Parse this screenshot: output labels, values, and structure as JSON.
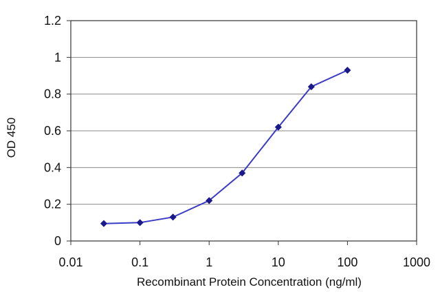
{
  "chart_data": {
    "type": "line",
    "title": "",
    "xlabel": "Recombinant Protein Concentration (ng/ml)",
    "ylabel": "OD 450",
    "x_scale": "log",
    "xlim": [
      0.01,
      1000
    ],
    "ylim": [
      0,
      1.2
    ],
    "x_ticks": [
      "0.01",
      "0.1",
      "1",
      "10",
      "100",
      "1000"
    ],
    "y_ticks": [
      "0",
      "0.2",
      "0.4",
      "0.6",
      "0.8",
      "1",
      "1.2"
    ],
    "grid": "horizontal",
    "legend": "none",
    "series": [
      {
        "x": [
          0.03,
          0.1,
          0.3,
          1,
          3,
          10,
          30,
          100
        ],
        "y": [
          0.095,
          0.1,
          0.13,
          0.22,
          0.37,
          0.62,
          0.84,
          0.93
        ]
      }
    ],
    "colors": {
      "line": "#3a3ac8",
      "marker": "#1a1a8c",
      "grid": "#8a8a8a",
      "axis": "#333333"
    }
  }
}
